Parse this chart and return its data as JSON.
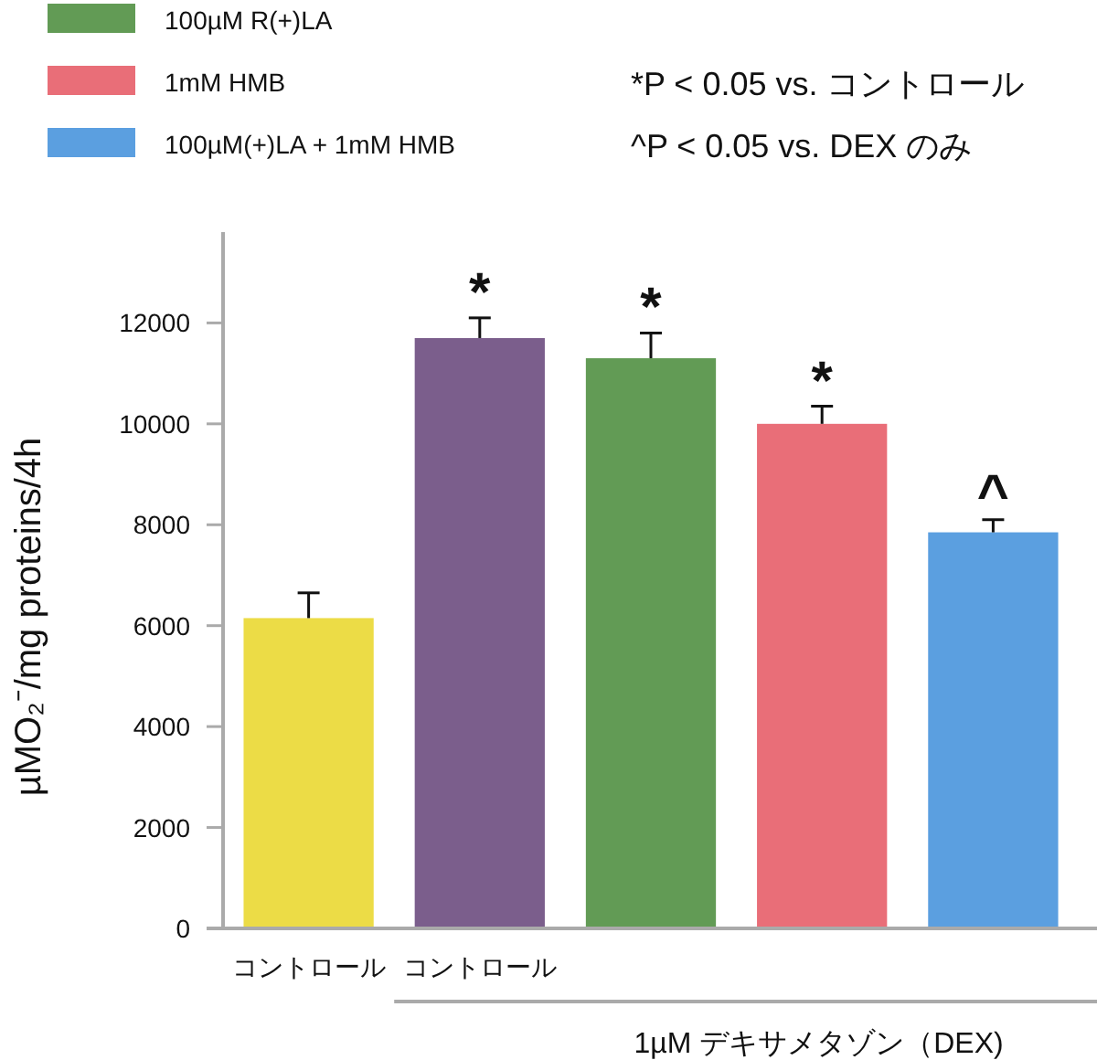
{
  "chart_data": {
    "type": "bar",
    "legend": "top left",
    "categories": [
      "コントロール",
      "コントロール",
      null,
      null,
      null
    ],
    "series": [
      {
        "color": "#ecdc46",
        "values": [
          6150,
          null,
          null,
          null,
          null
        ],
        "errors": [
          500,
          null,
          null,
          null,
          null
        ]
      },
      {
        "color": "#7b5e8c",
        "values": [
          null,
          11700,
          null,
          null,
          null
        ],
        "errors": [
          null,
          400,
          null,
          null,
          null
        ],
        "value_labels": [
          null,
          "*",
          null,
          null,
          null
        ]
      },
      {
        "name": "100µM R(+)LA",
        "color": "#629b55",
        "values": [
          null,
          null,
          11300,
          null,
          null
        ],
        "errors": [
          null,
          null,
          500,
          null,
          null
        ],
        "value_labels": [
          null,
          null,
          "*",
          null,
          null
        ]
      },
      {
        "name": "1mM HMB",
        "color": "#e96e78",
        "values": [
          null,
          null,
          null,
          10000,
          null
        ],
        "errors": [
          null,
          null,
          null,
          350,
          null
        ],
        "value_labels": [
          null,
          null,
          null,
          "*",
          null
        ]
      },
      {
        "name": "100µM(+)LA + 1mM HMB",
        "color": "#5b9fe0",
        "values": [
          null,
          null,
          null,
          null,
          7850
        ],
        "errors": [
          null,
          null,
          null,
          null,
          250
        ],
        "value_labels": [
          null,
          null,
          null,
          null,
          "^"
        ]
      }
    ],
    "ylim": [
      0,
      13800
    ],
    "yticks": [
      0,
      2000,
      4000,
      6000,
      8000,
      10000,
      12000
    ],
    "ylabel": "µMO₂⁻/mg proteins/4h",
    "xlabel": "1µM デキサメタゾン（DEX)",
    "annotations": [
      "*P < 0.05 vs. コントロール",
      "^P < 0.05 vs. DEX のみ"
    ]
  }
}
